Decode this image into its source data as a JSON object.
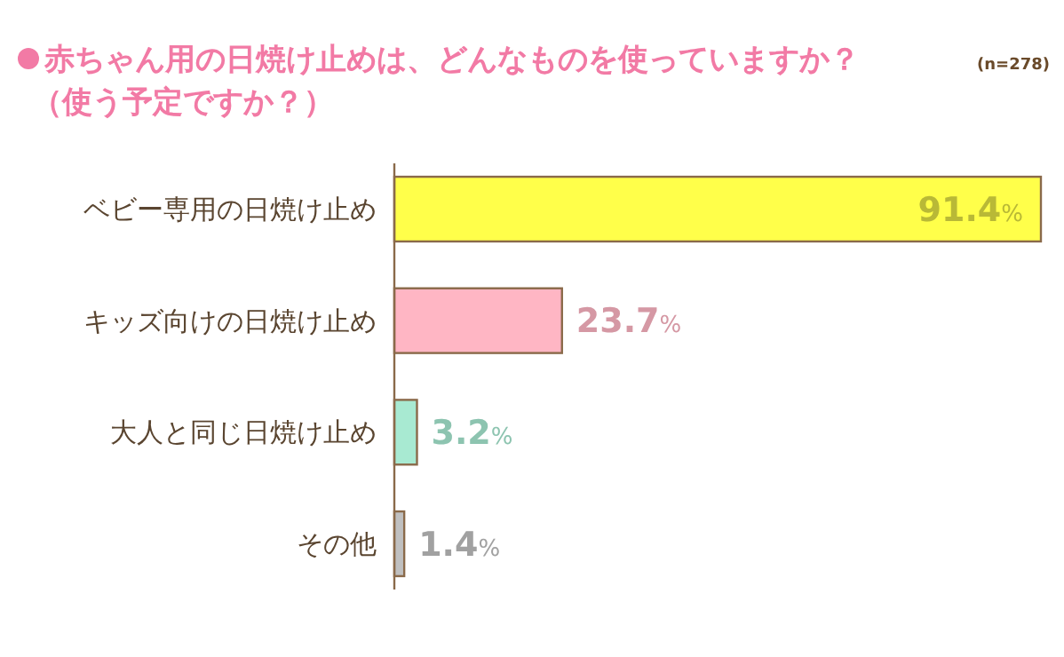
{
  "chart_data": {
    "type": "bar",
    "orientation": "horizontal",
    "title": "赤ちゃん用の日焼け止めは、どんなものを使っていますか？",
    "subtitle": "（使う予定ですか？）",
    "annotations": [
      "(n=278)"
    ],
    "categories": [
      "ベビー専用の日焼け止め",
      "キッズ向けの日焼け止め",
      "大人と同じ日焼け止め",
      "その他"
    ],
    "values": [
      91.4,
      23.7,
      3.2,
      1.4
    ],
    "colors": [
      "#ffff4a",
      "#ffb6c4",
      "#a8ead2",
      "#c0c0c0"
    ],
    "value_labels": [
      "91.4%",
      "23.7%",
      "3.2%",
      "1.4%"
    ]
  }
}
